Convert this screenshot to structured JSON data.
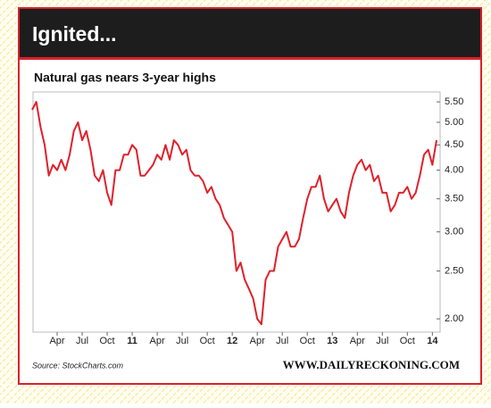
{
  "chart_data": {
    "type": "line",
    "title": "Ignited...",
    "subtitle": "Natural gas nears 3-year highs",
    "source": "Source: StockCharts.com",
    "credit": "WWW.DAILYRECKONING.COM",
    "log_scale": true,
    "categories": [
      null,
      null,
      null,
      null,
      null,
      null,
      "Apr",
      null,
      null,
      null,
      null,
      null,
      "Jul",
      null,
      null,
      null,
      null,
      null,
      "Oct",
      null,
      null,
      null,
      null,
      null,
      "11",
      null,
      null,
      null,
      null,
      null,
      "Apr",
      null,
      null,
      null,
      null,
      null,
      "Jul",
      null,
      null,
      null,
      null,
      null,
      "Oct",
      null,
      null,
      null,
      null,
      null,
      "12",
      null,
      null,
      null,
      null,
      null,
      "Apr",
      null,
      null,
      null,
      null,
      null,
      "Jul",
      null,
      null,
      null,
      null,
      null,
      "Oct",
      null,
      null,
      null,
      null,
      null,
      "13",
      null,
      null,
      null,
      null,
      null,
      "Apr",
      null,
      null,
      null,
      null,
      null,
      "Jul",
      null,
      null,
      null,
      null,
      null,
      "Oct",
      null,
      null,
      null,
      null,
      null,
      "14",
      null
    ],
    "series": [
      {
        "name": "Natural gas",
        "color": "#e0202a",
        "values": [
          5.3,
          5.5,
          4.9,
          4.5,
          3.9,
          4.1,
          4.0,
          4.2,
          4.0,
          4.3,
          4.8,
          5.0,
          4.6,
          4.8,
          4.4,
          3.9,
          3.8,
          4.0,
          3.6,
          3.4,
          4.0,
          4.0,
          4.3,
          4.3,
          4.5,
          4.4,
          3.9,
          3.9,
          4.0,
          4.1,
          4.3,
          4.2,
          4.5,
          4.2,
          4.6,
          4.5,
          4.3,
          4.4,
          4.0,
          3.9,
          3.9,
          3.8,
          3.6,
          3.7,
          3.5,
          3.4,
          3.2,
          3.1,
          3.0,
          2.5,
          2.6,
          2.4,
          2.3,
          2.2,
          2.0,
          1.95,
          2.4,
          2.5,
          2.5,
          2.8,
          2.9,
          3.0,
          2.8,
          2.8,
          2.9,
          3.2,
          3.5,
          3.7,
          3.7,
          3.9,
          3.5,
          3.3,
          3.4,
          3.5,
          3.3,
          3.2,
          3.6,
          3.9,
          4.1,
          4.2,
          4.0,
          4.1,
          3.8,
          3.9,
          3.6,
          3.6,
          3.3,
          3.4,
          3.6,
          3.6,
          3.7,
          3.5,
          3.6,
          3.9,
          4.3,
          4.4,
          4.1,
          4.6
        ]
      }
    ],
    "ylim": [
      1.88,
      5.76
    ],
    "yticks": [
      {
        "value": 2,
        "label": "2.00"
      },
      {
        "value": 2.5,
        "label": "2.50"
      },
      {
        "value": 3,
        "label": "3.00"
      },
      {
        "value": 3.5,
        "label": "3.50"
      },
      {
        "value": 4,
        "label": "4.00"
      },
      {
        "value": 4.5,
        "label": "4.50"
      },
      {
        "value": 5,
        "label": "5.00"
      },
      {
        "value": 5.5,
        "label": "5.50"
      }
    ]
  }
}
